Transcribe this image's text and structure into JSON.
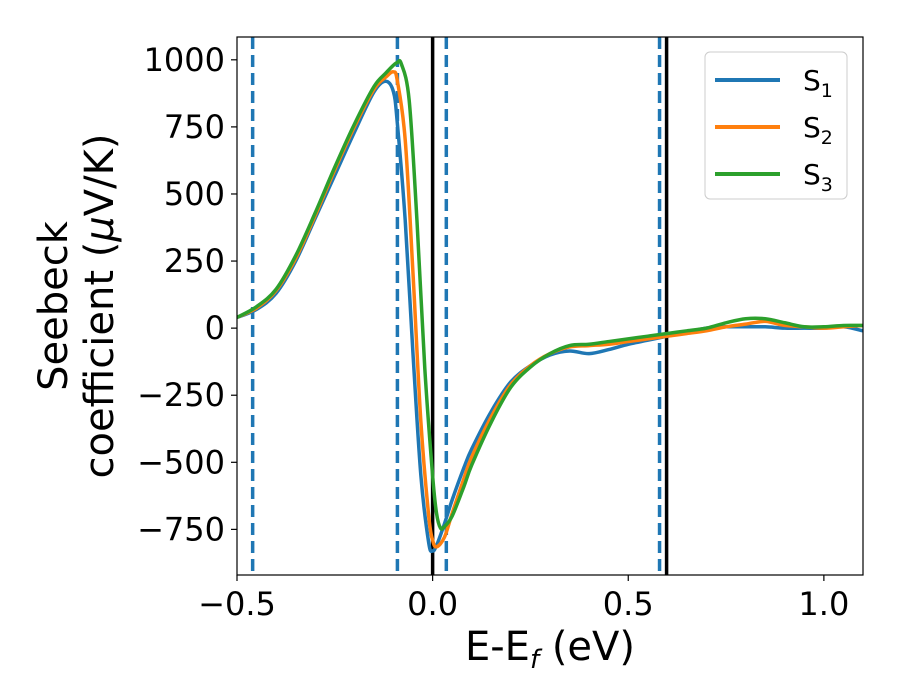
{
  "chart_data": {
    "type": "line",
    "xlabel": "E-E",
    "xlabel_sub": "f",
    "xlabel_unit": " (eV)",
    "ylabel_line1": "Seebeck",
    "ylabel_line2": "coefficient  (",
    "ylabel_mu": "μ",
    "ylabel_unit": "V/K)",
    "xlim": [
      -0.5,
      1.1
    ],
    "ylim": [
      -920,
      1085
    ],
    "xticks": [
      -0.5,
      0.0,
      0.5,
      1.0
    ],
    "xtick_labels": [
      "−0.5",
      "0.0",
      "0.5",
      "1.0"
    ],
    "yticks": [
      1000,
      750,
      500,
      250,
      0,
      -250,
      -500,
      -750
    ],
    "ytick_labels": [
      "1000",
      "750",
      "500",
      "250",
      "0",
      "−250",
      "−500",
      "−750"
    ],
    "grid": false,
    "legend_position": "top-right",
    "series": [
      {
        "name": "S",
        "sub": "1",
        "color": "#1f77b4",
        "x": [
          -0.5,
          -0.45,
          -0.4,
          -0.35,
          -0.3,
          -0.25,
          -0.2,
          -0.15,
          -0.12,
          -0.1,
          -0.09,
          -0.07,
          -0.05,
          -0.03,
          -0.01,
          0.0,
          0.01,
          0.03,
          0.05,
          0.08,
          0.1,
          0.15,
          0.2,
          0.25,
          0.3,
          0.35,
          0.4,
          0.45,
          0.5,
          0.55,
          0.6,
          0.65,
          0.7,
          0.75,
          0.8,
          0.85,
          0.9,
          0.95,
          1.0,
          1.05,
          1.1
        ],
        "y": [
          40,
          70,
          130,
          250,
          410,
          570,
          730,
          880,
          920,
          880,
          760,
          400,
          -100,
          -550,
          -800,
          -830,
          -810,
          -730,
          -640,
          -520,
          -450,
          -310,
          -200,
          -140,
          -100,
          -85,
          -95,
          -80,
          -60,
          -45,
          -30,
          -15,
          0,
          5,
          5,
          5,
          0,
          0,
          0,
          5,
          -10
        ]
      },
      {
        "name": "S",
        "sub": "2",
        "color": "#ff7f0e",
        "x": [
          -0.5,
          -0.45,
          -0.4,
          -0.35,
          -0.3,
          -0.25,
          -0.2,
          -0.15,
          -0.12,
          -0.1,
          -0.09,
          -0.07,
          -0.05,
          -0.03,
          -0.01,
          0.0,
          0.01,
          0.03,
          0.05,
          0.08,
          0.1,
          0.15,
          0.2,
          0.25,
          0.3,
          0.35,
          0.4,
          0.45,
          0.5,
          0.55,
          0.6,
          0.65,
          0.7,
          0.75,
          0.8,
          0.85,
          0.9,
          0.95,
          1.0,
          1.05,
          1.1
        ],
        "y": [
          40,
          75,
          140,
          260,
          420,
          590,
          750,
          890,
          935,
          955,
          920,
          700,
          200,
          -350,
          -700,
          -790,
          -815,
          -780,
          -690,
          -560,
          -480,
          -330,
          -210,
          -140,
          -95,
          -70,
          -65,
          -60,
          -50,
          -40,
          -30,
          -20,
          -10,
          5,
          15,
          25,
          10,
          5,
          0,
          5,
          10
        ]
      },
      {
        "name": "S",
        "sub": "3",
        "color": "#2ca02c",
        "x": [
          -0.5,
          -0.45,
          -0.4,
          -0.35,
          -0.3,
          -0.25,
          -0.2,
          -0.15,
          -0.12,
          -0.1,
          -0.09,
          -0.08,
          -0.06,
          -0.04,
          -0.02,
          0.0,
          0.01,
          0.02,
          0.03,
          0.05,
          0.08,
          0.1,
          0.15,
          0.2,
          0.25,
          0.3,
          0.35,
          0.4,
          0.45,
          0.5,
          0.55,
          0.6,
          0.65,
          0.7,
          0.75,
          0.8,
          0.85,
          0.9,
          0.95,
          1.0,
          1.05,
          1.1
        ],
        "y": [
          40,
          80,
          145,
          270,
          430,
          600,
          760,
          900,
          950,
          980,
          990,
          985,
          850,
          400,
          -150,
          -550,
          -690,
          -745,
          -740,
          -700,
          -590,
          -510,
          -350,
          -220,
          -145,
          -95,
          -65,
          -60,
          -50,
          -40,
          -30,
          -20,
          -10,
          0,
          20,
          35,
          35,
          20,
          5,
          5,
          10,
          10
        ]
      }
    ],
    "vlines_dashed": [
      -0.46,
      -0.09,
      0.035,
      0.58
    ],
    "vlines_dashed_color": "#1f77b4",
    "vlines_solid": [
      0.0,
      0.598
    ],
    "vlines_solid_color": "#000000"
  }
}
